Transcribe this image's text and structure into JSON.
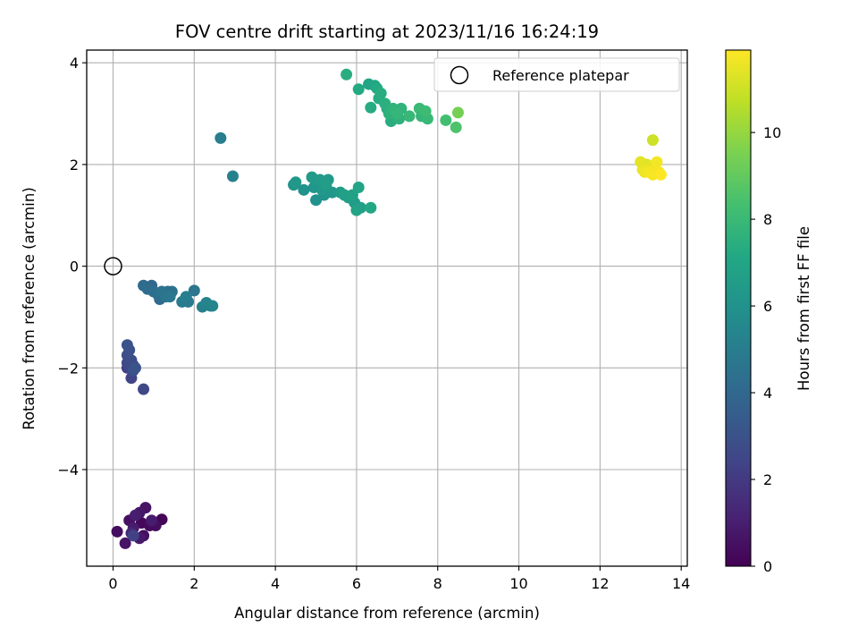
{
  "chart_data": {
    "type": "scatter",
    "title": "FOV centre drift starting at 2023/11/16 16:24:19",
    "xlabel": "Angular distance from reference (arcmin)",
    "ylabel": "Rotation from reference (arcmin)",
    "xlim": [
      -0.65,
      14.15
    ],
    "ylim": [
      -5.9,
      4.25
    ],
    "x_ticks": [
      0,
      2,
      4,
      6,
      8,
      10,
      12,
      14
    ],
    "y_ticks": [
      -4,
      -2,
      0,
      2,
      4
    ],
    "grid": true,
    "legend": {
      "placement": "upper right",
      "entries": [
        "Reference platepar"
      ]
    },
    "reference_point": {
      "x": 0,
      "y": 0,
      "label": "Reference platepar"
    },
    "colorbar": {
      "label": "Hours from first FF file",
      "colormap": "viridis",
      "range": [
        0,
        11.9
      ],
      "ticks": [
        0,
        2,
        4,
        6,
        8,
        10
      ]
    },
    "series": [
      {
        "values": [
          {
            "x": 0.1,
            "y": -5.22,
            "t": 0.4
          },
          {
            "x": 0.3,
            "y": -5.45,
            "t": 0.6
          },
          {
            "x": 0.4,
            "y": -5.0,
            "t": 0.5
          },
          {
            "x": 0.5,
            "y": -5.15,
            "t": 0.9
          },
          {
            "x": 0.45,
            "y": -5.25,
            "t": 1.3
          },
          {
            "x": 0.55,
            "y": -4.9,
            "t": 1.0
          },
          {
            "x": 0.65,
            "y": -4.85,
            "t": 0.7
          },
          {
            "x": 0.7,
            "y": -5.05,
            "t": 0.2
          },
          {
            "x": 0.65,
            "y": -5.35,
            "t": 0.8
          },
          {
            "x": 0.75,
            "y": -5.3,
            "t": 0.5
          },
          {
            "x": 0.8,
            "y": -4.75,
            "t": 0.6
          },
          {
            "x": 0.9,
            "y": -5.1,
            "t": 0.3
          },
          {
            "x": 0.95,
            "y": -5.0,
            "t": 0.9
          },
          {
            "x": 1.05,
            "y": -5.1,
            "t": 0.4
          },
          {
            "x": 1.2,
            "y": -4.98,
            "t": 0.1
          },
          {
            "x": 0.5,
            "y": -5.3,
            "t": 2.3
          },
          {
            "x": 0.35,
            "y": -1.55,
            "t": 3.0
          },
          {
            "x": 0.35,
            "y": -1.75,
            "t": 2.8
          },
          {
            "x": 0.4,
            "y": -1.65,
            "t": 2.9
          },
          {
            "x": 0.35,
            "y": -1.9,
            "t": 2.6
          },
          {
            "x": 0.4,
            "y": -2.0,
            "t": 2.5
          },
          {
            "x": 0.45,
            "y": -1.85,
            "t": 2.7
          },
          {
            "x": 0.5,
            "y": -2.05,
            "t": 2.9
          },
          {
            "x": 0.45,
            "y": -2.2,
            "t": 2.4
          },
          {
            "x": 0.55,
            "y": -2.0,
            "t": 3.1
          },
          {
            "x": 0.5,
            "y": -1.95,
            "t": 2.2
          },
          {
            "x": 0.35,
            "y": -2.0,
            "t": 2.0
          },
          {
            "x": 0.75,
            "y": -2.42,
            "t": 2.6
          },
          {
            "x": 0.75,
            "y": -0.38,
            "t": 4.1
          },
          {
            "x": 0.85,
            "y": -0.45,
            "t": 4.2
          },
          {
            "x": 0.95,
            "y": -0.38,
            "t": 4.0
          },
          {
            "x": 1.0,
            "y": -0.5,
            "t": 4.3
          },
          {
            "x": 1.1,
            "y": -0.55,
            "t": 4.4
          },
          {
            "x": 1.15,
            "y": -0.65,
            "t": 4.1
          },
          {
            "x": 1.2,
            "y": -0.5,
            "t": 4.5
          },
          {
            "x": 1.3,
            "y": -0.6,
            "t": 4.6
          },
          {
            "x": 1.35,
            "y": -0.5,
            "t": 4.2
          },
          {
            "x": 1.4,
            "y": -0.6,
            "t": 4.7
          },
          {
            "x": 1.45,
            "y": -0.5,
            "t": 4.4
          },
          {
            "x": 1.7,
            "y": -0.7,
            "t": 4.9
          },
          {
            "x": 1.8,
            "y": -0.6,
            "t": 5.0
          },
          {
            "x": 1.85,
            "y": -0.7,
            "t": 4.8
          },
          {
            "x": 2.0,
            "y": -0.48,
            "t": 4.6
          },
          {
            "x": 2.2,
            "y": -0.8,
            "t": 5.2
          },
          {
            "x": 2.3,
            "y": -0.72,
            "t": 5.3
          },
          {
            "x": 2.4,
            "y": -0.78,
            "t": 5.1
          },
          {
            "x": 2.45,
            "y": -0.78,
            "t": 5.4
          },
          {
            "x": 2.65,
            "y": 2.52,
            "t": 5.0
          },
          {
            "x": 2.95,
            "y": 1.77,
            "t": 5.2
          },
          {
            "x": 4.45,
            "y": 1.6,
            "t": 6.1
          },
          {
            "x": 4.5,
            "y": 1.65,
            "t": 6.3
          },
          {
            "x": 4.7,
            "y": 1.5,
            "t": 6.0
          },
          {
            "x": 4.9,
            "y": 1.75,
            "t": 6.4
          },
          {
            "x": 4.95,
            "y": 1.55,
            "t": 6.2
          },
          {
            "x": 5.0,
            "y": 1.3,
            "t": 6.0
          },
          {
            "x": 5.1,
            "y": 1.7,
            "t": 6.5
          },
          {
            "x": 5.15,
            "y": 1.5,
            "t": 6.3
          },
          {
            "x": 5.2,
            "y": 1.4,
            "t": 6.1
          },
          {
            "x": 5.25,
            "y": 1.6,
            "t": 6.6
          },
          {
            "x": 5.3,
            "y": 1.7,
            "t": 6.4
          },
          {
            "x": 5.4,
            "y": 1.45,
            "t": 6.2
          },
          {
            "x": 5.6,
            "y": 1.45,
            "t": 6.5
          },
          {
            "x": 5.7,
            "y": 1.4,
            "t": 6.7
          },
          {
            "x": 5.8,
            "y": 1.35,
            "t": 6.6
          },
          {
            "x": 5.9,
            "y": 1.4,
            "t": 6.8
          },
          {
            "x": 5.95,
            "y": 1.25,
            "t": 6.5
          },
          {
            "x": 6.0,
            "y": 1.1,
            "t": 6.9
          },
          {
            "x": 6.05,
            "y": 1.55,
            "t": 7.0
          },
          {
            "x": 6.1,
            "y": 1.15,
            "t": 6.7
          },
          {
            "x": 6.35,
            "y": 1.15,
            "t": 7.1
          },
          {
            "x": 5.75,
            "y": 3.77,
            "t": 7.4
          },
          {
            "x": 6.05,
            "y": 3.48,
            "t": 7.2
          },
          {
            "x": 6.3,
            "y": 3.58,
            "t": 7.0
          },
          {
            "x": 6.35,
            "y": 3.12,
            "t": 7.3
          },
          {
            "x": 6.45,
            "y": 3.55,
            "t": 7.1
          },
          {
            "x": 6.5,
            "y": 3.5,
            "t": 7.2
          },
          {
            "x": 6.55,
            "y": 3.3,
            "t": 7.3
          },
          {
            "x": 6.6,
            "y": 3.4,
            "t": 7.4
          },
          {
            "x": 6.7,
            "y": 3.2,
            "t": 7.5
          },
          {
            "x": 6.75,
            "y": 3.1,
            "t": 7.3
          },
          {
            "x": 6.8,
            "y": 3.0,
            "t": 7.6
          },
          {
            "x": 6.85,
            "y": 2.85,
            "t": 7.4
          },
          {
            "x": 6.9,
            "y": 3.1,
            "t": 7.7
          },
          {
            "x": 6.95,
            "y": 3.05,
            "t": 7.5
          },
          {
            "x": 7.0,
            "y": 3.0,
            "t": 7.8
          },
          {
            "x": 7.05,
            "y": 2.9,
            "t": 7.6
          },
          {
            "x": 7.1,
            "y": 3.1,
            "t": 7.7
          },
          {
            "x": 7.3,
            "y": 2.95,
            "t": 7.9
          },
          {
            "x": 7.55,
            "y": 3.1,
            "t": 8.0
          },
          {
            "x": 7.6,
            "y": 2.95,
            "t": 7.8
          },
          {
            "x": 7.7,
            "y": 3.05,
            "t": 8.1
          },
          {
            "x": 7.75,
            "y": 2.9,
            "t": 7.9
          },
          {
            "x": 8.2,
            "y": 2.87,
            "t": 8.3
          },
          {
            "x": 8.45,
            "y": 2.73,
            "t": 8.5
          },
          {
            "x": 8.5,
            "y": 3.02,
            "t": 9.4
          },
          {
            "x": 13.0,
            "y": 2.05,
            "t": 11.4
          },
          {
            "x": 13.05,
            "y": 1.9,
            "t": 11.5
          },
          {
            "x": 13.1,
            "y": 1.85,
            "t": 11.6
          },
          {
            "x": 13.15,
            "y": 2.0,
            "t": 11.3
          },
          {
            "x": 13.2,
            "y": 1.85,
            "t": 11.7
          },
          {
            "x": 13.25,
            "y": 1.95,
            "t": 11.5
          },
          {
            "x": 13.3,
            "y": 2.48,
            "t": 11.0
          },
          {
            "x": 13.3,
            "y": 1.8,
            "t": 11.8
          },
          {
            "x": 13.35,
            "y": 1.9,
            "t": 11.6
          },
          {
            "x": 13.4,
            "y": 2.05,
            "t": 11.7
          },
          {
            "x": 13.45,
            "y": 1.85,
            "t": 11.8
          },
          {
            "x": 13.5,
            "y": 1.8,
            "t": 11.9
          }
        ]
      }
    ]
  }
}
